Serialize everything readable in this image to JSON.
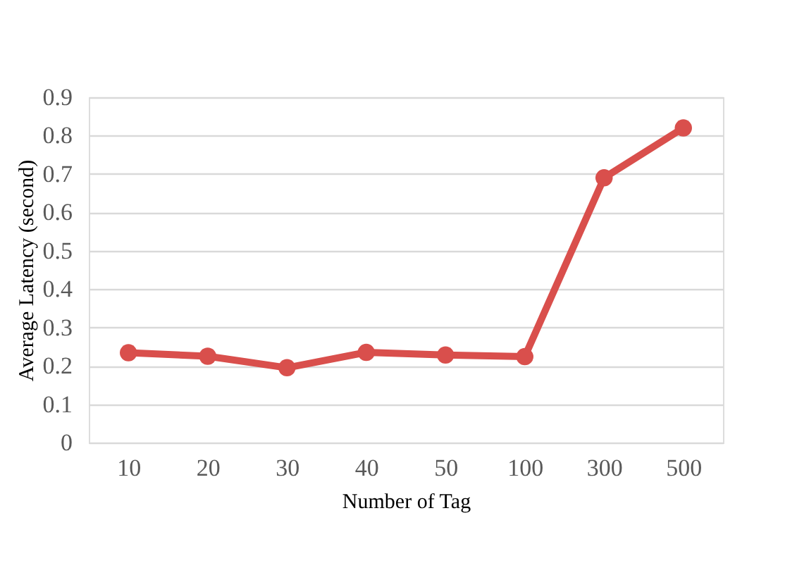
{
  "chart_data": {
    "type": "line",
    "xlabel": "Number of Tag",
    "ylabel": "Average Latency (second)",
    "categories": [
      "10",
      "20",
      "30",
      "40",
      "50",
      "100",
      "300",
      "500"
    ],
    "series": [
      {
        "color": "#d94f4c",
        "values": [
          0.234,
          0.225,
          0.195,
          0.235,
          0.228,
          0.224,
          0.69,
          0.82
        ]
      }
    ],
    "ylim": [
      0,
      0.9
    ],
    "yticks": [
      0,
      0.1,
      0.2,
      0.3,
      0.4,
      0.5,
      0.6,
      0.7,
      0.8,
      0.9
    ],
    "grid": "y",
    "marker": "circle",
    "line_style": "solid",
    "legend": false
  }
}
